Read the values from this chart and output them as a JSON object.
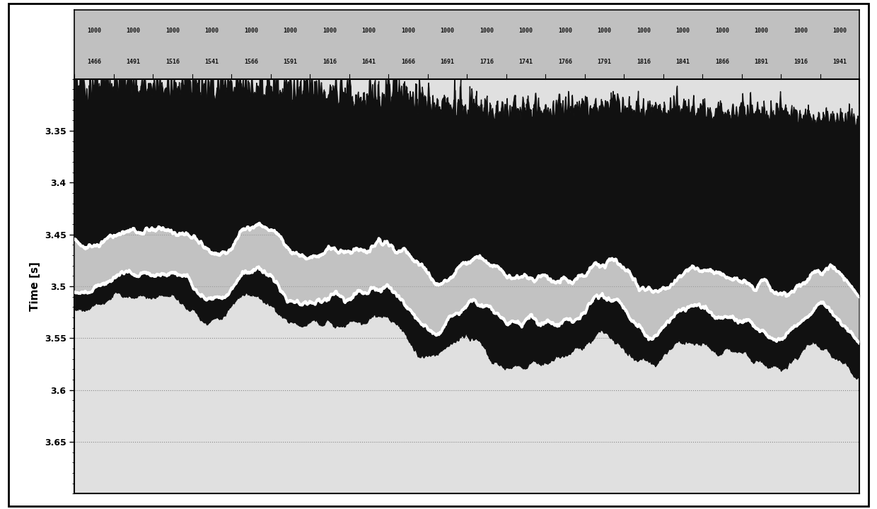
{
  "ylabel": "Time [s]",
  "ylim": [
    3.3,
    3.7
  ],
  "xlim": [
    0,
    20
  ],
  "yticks": [
    3.35,
    3.4,
    3.45,
    3.5,
    3.55,
    3.6,
    3.65
  ],
  "ytick_labels": [
    "3.35",
    "3.4",
    "3.45",
    "3.5",
    "3.55",
    "3.6",
    "3.65"
  ],
  "trace_top": [
    "1000",
    "1000",
    "1000",
    "1000",
    "1000",
    "1000",
    "1000",
    "1000",
    "1000",
    "1000",
    "1000",
    "1000",
    "1000",
    "1000",
    "1000",
    "1000",
    "1000",
    "1000",
    "1000",
    "1000"
  ],
  "trace_bot": [
    "1466",
    "1491",
    "1516",
    "1541",
    "1566",
    "1591",
    "1616",
    "1641",
    "1666",
    "1691",
    "1716",
    "1741",
    "1766",
    "1791",
    "1816",
    "1841",
    "1866",
    "1891",
    "1916",
    "1941"
  ],
  "n_traces": 20,
  "fill_dark": "#111111",
  "fill_gray": "#aaaaaa",
  "white_line": "#ffffff",
  "grid_color": "#888888",
  "bg_color": "#e0e0e0",
  "header_bg": "#c0c0c0",
  "outer_bg": "#ffffff"
}
